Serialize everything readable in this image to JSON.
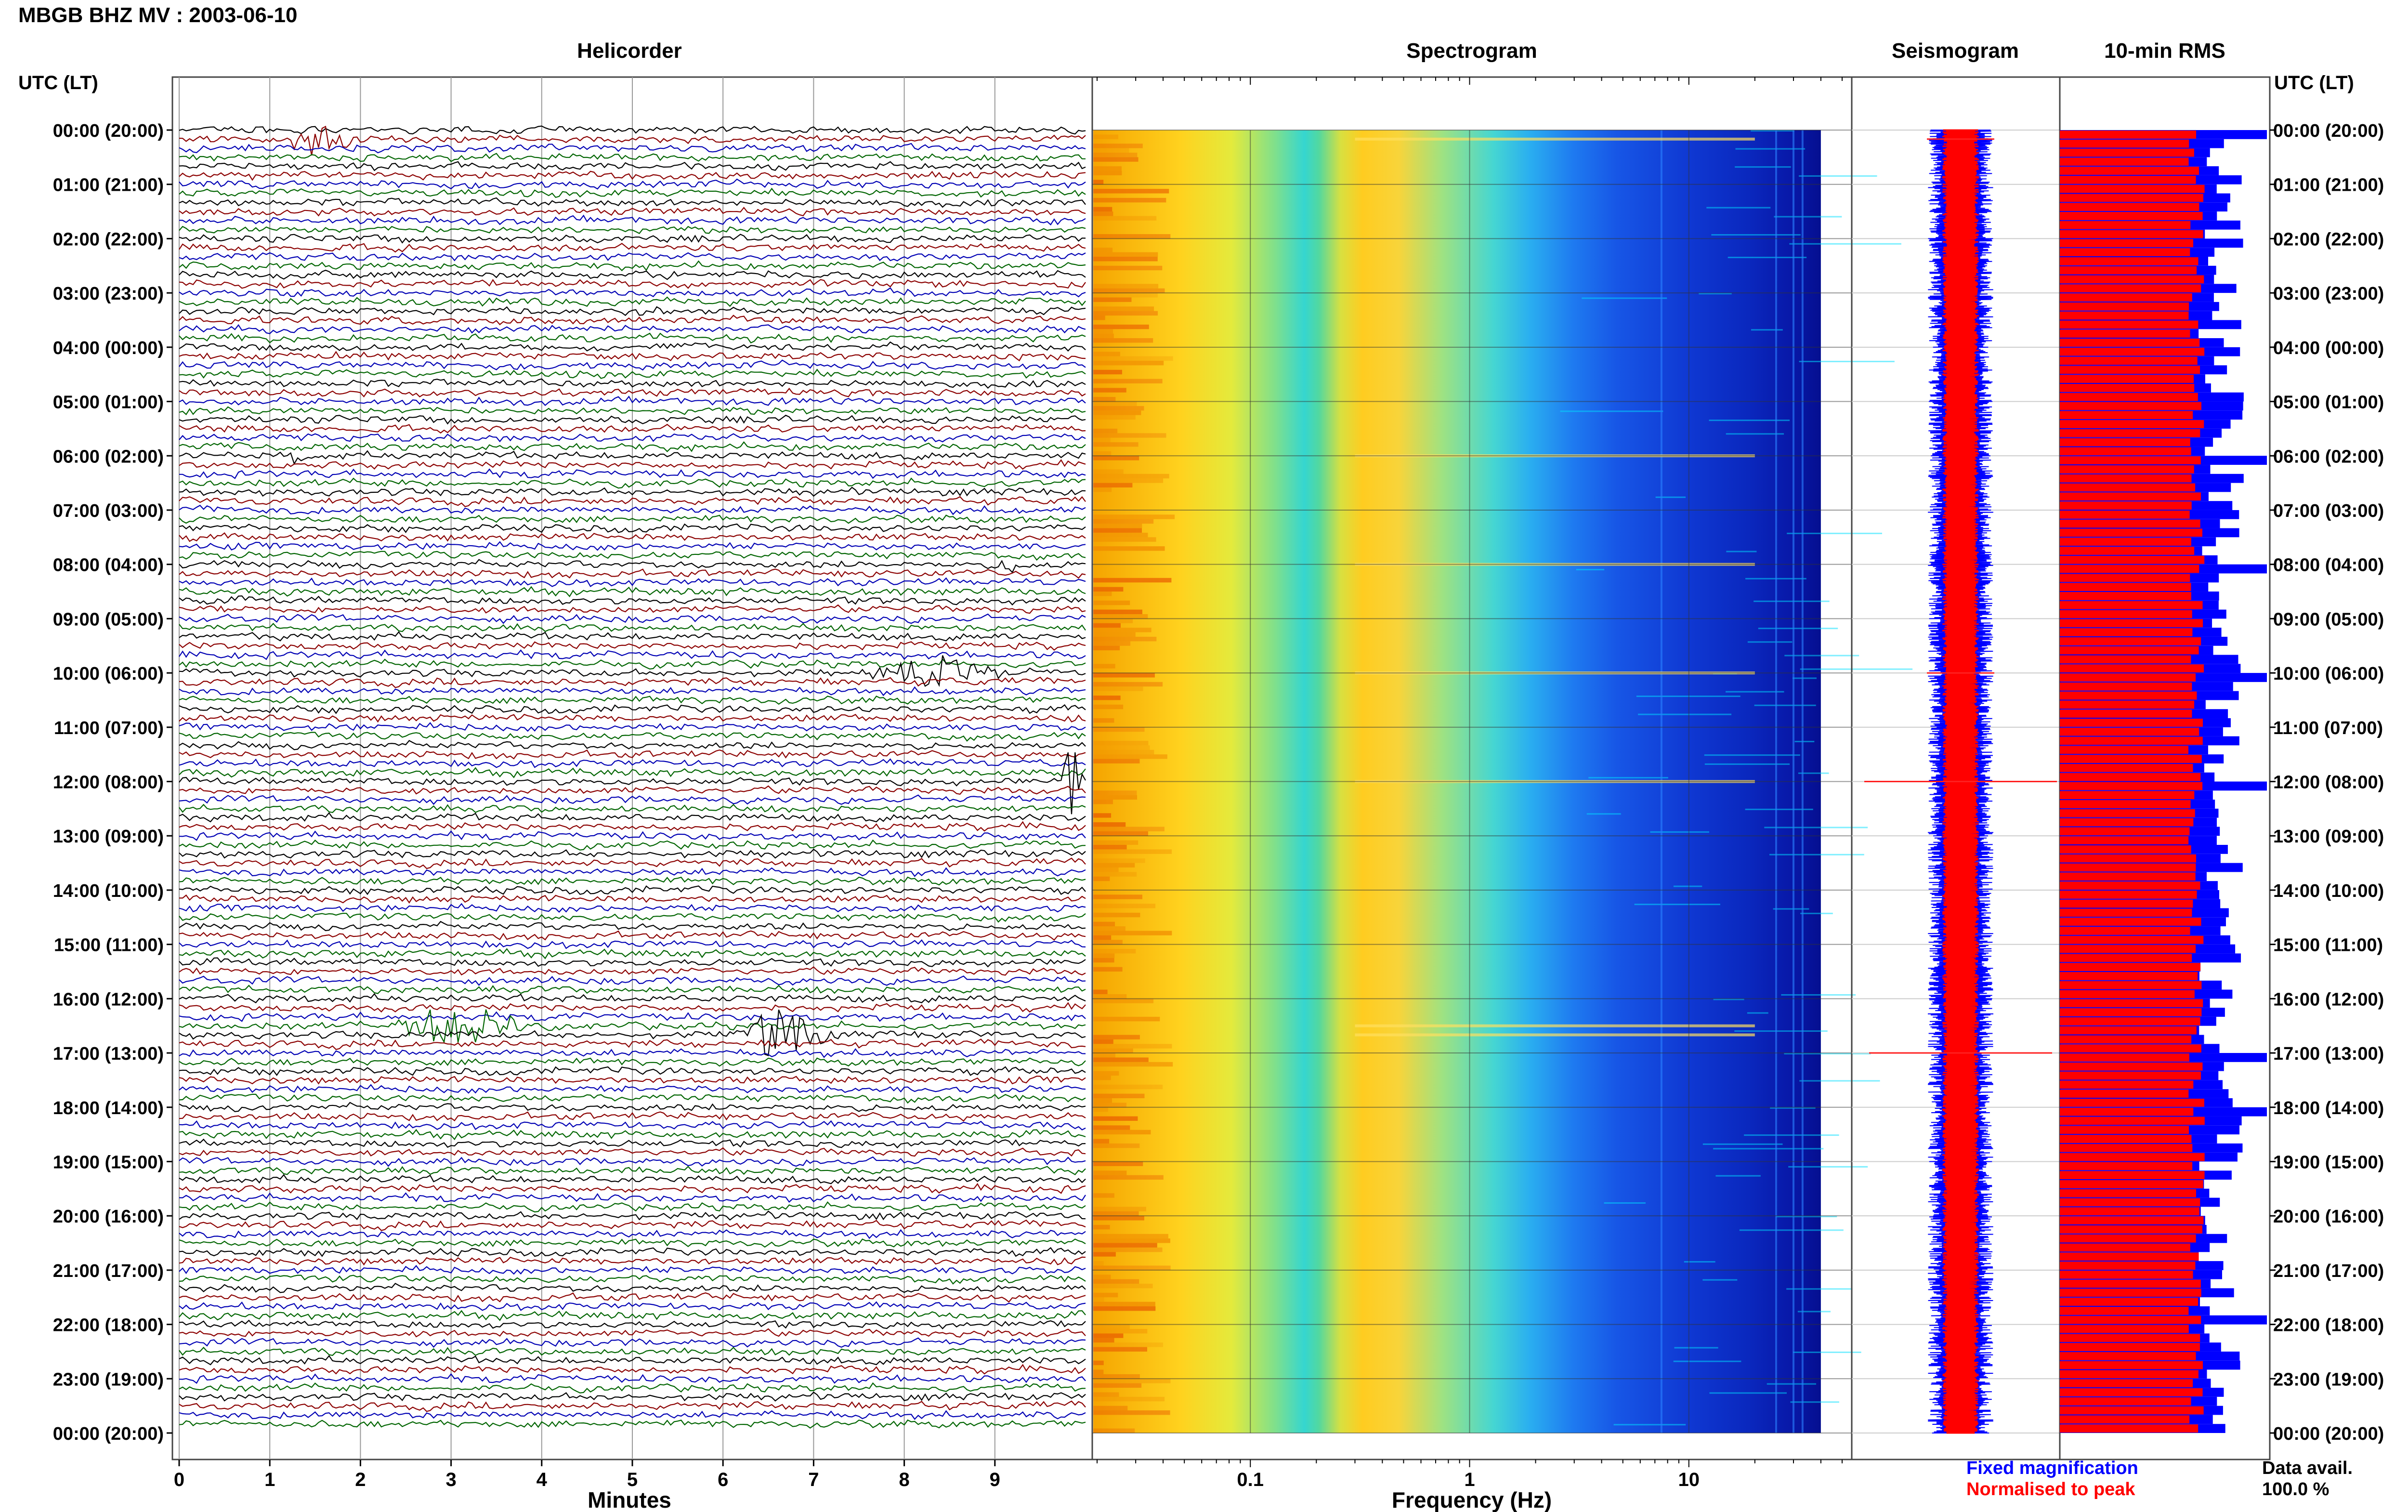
{
  "title": "MBGB BHZ MV : 2003-06-10",
  "left_axis_label": "UTC (LT)",
  "right_axis_label": "UTC (LT)",
  "time_labels": [
    "00:00 (20:00)",
    "01:00 (21:00)",
    "02:00 (22:00)",
    "03:00 (23:00)",
    "04:00 (00:00)",
    "05:00 (01:00)",
    "06:00 (02:00)",
    "07:00 (03:00)",
    "08:00 (04:00)",
    "09:00 (05:00)",
    "10:00 (06:00)",
    "11:00 (07:00)",
    "12:00 (08:00)",
    "13:00 (09:00)",
    "14:00 (10:00)",
    "15:00 (11:00)",
    "16:00 (12:00)",
    "17:00 (13:00)",
    "18:00 (14:00)",
    "19:00 (15:00)",
    "20:00 (16:00)",
    "21:00 (17:00)",
    "22:00 (18:00)",
    "23:00 (19:00)",
    "00:00 (20:00)"
  ],
  "panels": {
    "helicorder": {
      "title": "Helicorder",
      "xlabel": "Minutes",
      "ticks": [
        "0",
        "1",
        "2",
        "3",
        "4",
        "5",
        "6",
        "7",
        "8",
        "9"
      ]
    },
    "spectrogram": {
      "title": "Spectrogram",
      "xlabel": "Frequency (Hz)",
      "ticks": [
        "0.1",
        "1",
        "10"
      ]
    },
    "seismogram": {
      "title": "Seismogram"
    },
    "rms": {
      "title": "10-min RMS"
    }
  },
  "legend": {
    "fixed": "Fixed magnification",
    "normalised": "Normalised to peak",
    "fixed_color": "#0000ff",
    "normalised_color": "#ff0000"
  },
  "data_avail": {
    "label": "Data avail.",
    "value": "100.0 %"
  },
  "colors": {
    "trace_cycle": [
      "#000000",
      "#8b0000",
      "#0000b4",
      "#006400"
    ]
  },
  "chart_data": [
    {
      "type": "line",
      "title": "Helicorder",
      "xlabel": "Minutes",
      "xlim": [
        0,
        10
      ],
      "rows": 144,
      "row_minutes": 10,
      "events": [
        {
          "time": "00:10",
          "minute_start": 1.0,
          "minute_end": 2.0,
          "amplitude": 0.6
        },
        {
          "time": "06:00",
          "minute_start": 1.2,
          "minute_end": 1.4,
          "amplitude": 0.5
        },
        {
          "time": "08:00",
          "minute_start": 9.0,
          "minute_end": 9.3,
          "amplitude": 0.5
        },
        {
          "time": "10:00",
          "minute_start": 7.3,
          "minute_end": 9.5,
          "amplitude": 0.6
        },
        {
          "time": "12:00",
          "minute_start": 9.7,
          "minute_end": 10.0,
          "amplitude": 1.6
        },
        {
          "time": "16:30",
          "minute_start": 2.2,
          "minute_end": 3.9,
          "amplitude": 0.9
        },
        {
          "time": "16:40",
          "minute_start": 6.0,
          "minute_end": 7.3,
          "amplitude": 1.1
        }
      ]
    },
    {
      "type": "heatmap",
      "title": "Spectrogram",
      "xlabel": "Frequency (Hz)",
      "xscale": "log",
      "xlim": [
        0.02,
        50
      ],
      "colormap": "jet",
      "energy_profile": [
        {
          "hz": 0.02,
          "level": 0.8
        },
        {
          "hz": 0.05,
          "level": 0.65
        },
        {
          "hz": 0.1,
          "level": 0.5
        },
        {
          "hz": 0.25,
          "level": 0.75
        },
        {
          "hz": 0.4,
          "level": 0.72
        },
        {
          "hz": 1,
          "level": 0.45
        },
        {
          "hz": 2,
          "level": 0.28
        },
        {
          "hz": 5,
          "level": 0.16
        },
        {
          "hz": 10,
          "level": 0.11
        },
        {
          "hz": 40,
          "level": 0.05
        }
      ]
    },
    {
      "type": "bar",
      "title": "10-min RMS",
      "orientation": "horizontal",
      "bars": 144,
      "series": [
        {
          "name": "Fixed magnification",
          "typical": 0.7,
          "spike_times": [
            "00:00",
            "06:00",
            "08:00",
            "10:00",
            "12:00",
            "17:00",
            "18:00",
            "21:50"
          ]
        },
        {
          "name": "Normalised to peak",
          "typical": 0.66
        }
      ]
    }
  ]
}
